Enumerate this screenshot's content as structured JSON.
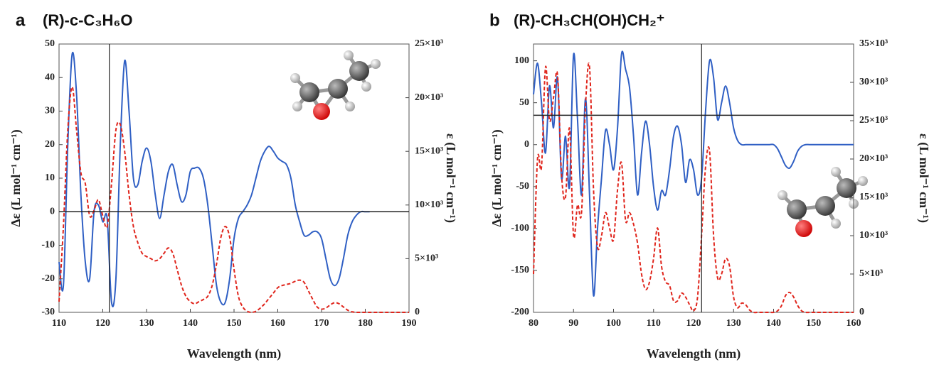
{
  "chart_data": [
    {
      "type": "line",
      "panel": "a",
      "title": "(R)-c-C₃H₆O",
      "xlabel": "Wavelength (nm)",
      "ylabel": "Δε (L mol⁻¹ cm⁻¹)",
      "y2label": "ε (L mol⁻¹ cm⁻¹)",
      "xlim": [
        110,
        190
      ],
      "xticks": [
        110,
        120,
        130,
        140,
        150,
        160,
        170,
        180,
        190
      ],
      "ylim": [
        -30,
        50
      ],
      "yticks": [
        -30,
        -20,
        -10,
        0,
        10,
        20,
        30,
        40,
        50
      ],
      "y2lim": [
        0,
        25000
      ],
      "y2ticks": [
        0,
        {
          "value": 5000,
          "label": "5×10³"
        },
        {
          "value": 10000,
          "label": "10×10³"
        },
        {
          "value": 15000,
          "label": "15×10³"
        },
        {
          "value": 20000,
          "label": "20×10³"
        },
        {
          "value": 25000,
          "label": "25×10³"
        }
      ],
      "hline": 0,
      "vline": 121.5,
      "x": [
        110,
        111,
        112,
        113,
        114,
        115,
        116,
        117,
        118,
        119,
        120,
        121,
        122,
        123,
        124,
        125,
        126,
        127,
        128,
        129,
        130,
        131,
        132,
        133,
        134,
        135,
        136,
        137,
        138,
        139,
        140,
        141,
        142,
        143,
        144,
        145,
        146,
        147,
        148,
        149,
        150,
        151,
        152,
        153,
        154,
        155,
        156,
        157,
        158,
        159,
        160,
        161,
        162,
        163,
        164,
        165,
        166,
        167,
        168,
        169,
        170,
        171,
        172,
        173,
        174,
        175,
        176,
        177,
        178,
        179,
        180,
        181,
        182,
        183,
        184,
        185,
        186,
        187,
        188,
        189,
        190
      ],
      "series": [
        {
          "color": "#2f5fc4",
          "dashed": false,
          "values": [
            -15,
            -22,
            20,
            47,
            35,
            5,
            -15,
            -20,
            0,
            2,
            -3,
            -2,
            -27,
            -20,
            20,
            45,
            30,
            10,
            8,
            15,
            19,
            15,
            5,
            -2,
            5,
            12,
            14,
            8,
            3,
            5,
            12,
            13,
            13,
            10,
            2,
            -10,
            -22,
            -27,
            -27,
            -20,
            -8,
            -2,
            0,
            2,
            5,
            10,
            15,
            18,
            19.5,
            18,
            16,
            15,
            14,
            10,
            2,
            -3,
            -7,
            -7,
            -6,
            -6,
            -8,
            -14,
            -20,
            -22,
            -20,
            -14,
            -7,
            -3,
            -1,
            0,
            0,
            0,
            null,
            null,
            null,
            null,
            null,
            null,
            null,
            null,
            null
          ]
        },
        {
          "color": "#e0251c",
          "dashed": true,
          "axis": "y2",
          "values": [
            1000,
            8000,
            17000,
            21000,
            17000,
            13000,
            12000,
            9000,
            9500,
            10500,
            9000,
            8000,
            12000,
            17000,
            17500,
            15000,
            11000,
            8000,
            6500,
            5500,
            5200,
            5000,
            4800,
            5000,
            5500,
            6000,
            5500,
            4000,
            2500,
            1500,
            1000,
            800,
            1000,
            1200,
            1500,
            2500,
            4500,
            7000,
            8000,
            7000,
            4000,
            1500,
            500,
            100,
            0,
            100,
            400,
            800,
            1300,
            1800,
            2300,
            2500,
            2600,
            2700,
            2900,
            3000,
            2800,
            2000,
            1200,
            500,
            300,
            400,
            700,
            900,
            800,
            500,
            200,
            50,
            0,
            0,
            0,
            0,
            0,
            0,
            0,
            0,
            0,
            0,
            0,
            0,
            0
          ]
        }
      ]
    },
    {
      "type": "line",
      "panel": "b",
      "title": "(R)-CH₃CH(OH)CH₂⁺",
      "xlabel": "Wavelength (nm)",
      "ylabel": "Δε (L mol⁻¹ cm⁻¹)",
      "y2label": "ε (L mol⁻¹ cm⁻¹)",
      "xlim": [
        80,
        160
      ],
      "xticks": [
        80,
        90,
        100,
        110,
        120,
        130,
        140,
        150,
        160
      ],
      "ylim": [
        -200,
        120
      ],
      "yticks": [
        -200,
        -150,
        -100,
        -50,
        0,
        50,
        100
      ],
      "y2lim": [
        0,
        35000
      ],
      "y2ticks": [
        0,
        {
          "value": 5000,
          "label": "5×10³"
        },
        {
          "value": 10000,
          "label": "10×10³"
        },
        {
          "value": 15000,
          "label": "15×10³"
        },
        {
          "value": 20000,
          "label": "20×10³"
        },
        {
          "value": 25000,
          "label": "25×10³"
        },
        {
          "value": 30000,
          "label": "30×10³"
        },
        {
          "value": 35000,
          "label": "35×10³"
        }
      ],
      "hline": 35,
      "vline": 122,
      "x": [
        80,
        81,
        82,
        83,
        84,
        85,
        86,
        87,
        88,
        89,
        90,
        91,
        92,
        93,
        94,
        95,
        96,
        97,
        98,
        99,
        100,
        101,
        102,
        103,
        104,
        105,
        106,
        107,
        108,
        109,
        110,
        111,
        112,
        113,
        114,
        115,
        116,
        117,
        118,
        119,
        120,
        121,
        122,
        123,
        124,
        125,
        126,
        127,
        128,
        129,
        130,
        131,
        132,
        133,
        134,
        135,
        136,
        137,
        138,
        139,
        140,
        141,
        142,
        143,
        144,
        145,
        146,
        147,
        148,
        149,
        150,
        151,
        152,
        153,
        154,
        155,
        156,
        157,
        158,
        159,
        160
      ],
      "series": [
        {
          "color": "#2f5fc4",
          "dashed": false,
          "values": [
            60,
            97,
            50,
            -10,
            70,
            20,
            80,
            -40,
            10,
            -50,
            107,
            30,
            -60,
            55,
            -60,
            -180,
            -100,
            -40,
            17,
            0,
            -30,
            20,
            108,
            90,
            68,
            10,
            -60,
            -10,
            28,
            0,
            -50,
            -78,
            -55,
            -60,
            -30,
            10,
            22,
            0,
            -45,
            -18,
            -30,
            -60,
            -40,
            40,
            100,
            80,
            30,
            50,
            70,
            50,
            20,
            5,
            0,
            0,
            0,
            0,
            0,
            0,
            0,
            0,
            0,
            -5,
            -15,
            -25,
            -28,
            -20,
            -8,
            -2,
            0,
            0,
            0,
            0,
            0,
            0,
            0,
            0,
            0,
            0,
            0,
            0,
            0
          ]
        },
        {
          "color": "#e0251c",
          "dashed": true,
          "axis": "y2",
          "values": [
            5000,
            20000,
            19000,
            32000,
            25000,
            28000,
            31000,
            18000,
            15000,
            24000,
            10000,
            14000,
            13000,
            27000,
            32000,
            16000,
            8500,
            10000,
            13000,
            11000,
            9500,
            16000,
            19500,
            12000,
            13000,
            11500,
            9000,
            5000,
            3000,
            4000,
            7000,
            11000,
            6000,
            4000,
            3500,
            1500,
            1500,
            2500,
            2000,
            1000,
            200,
            2000,
            10000,
            19000,
            21000,
            10000,
            4500,
            5000,
            7000,
            6000,
            2000,
            600,
            1200,
            1000,
            300,
            0,
            0,
            0,
            0,
            0,
            0,
            200,
            900,
            2200,
            2600,
            2000,
            900,
            200,
            0,
            0,
            0,
            0,
            0,
            0,
            0,
            0,
            0,
            0,
            0,
            0,
            0
          ]
        }
      ]
    }
  ]
}
